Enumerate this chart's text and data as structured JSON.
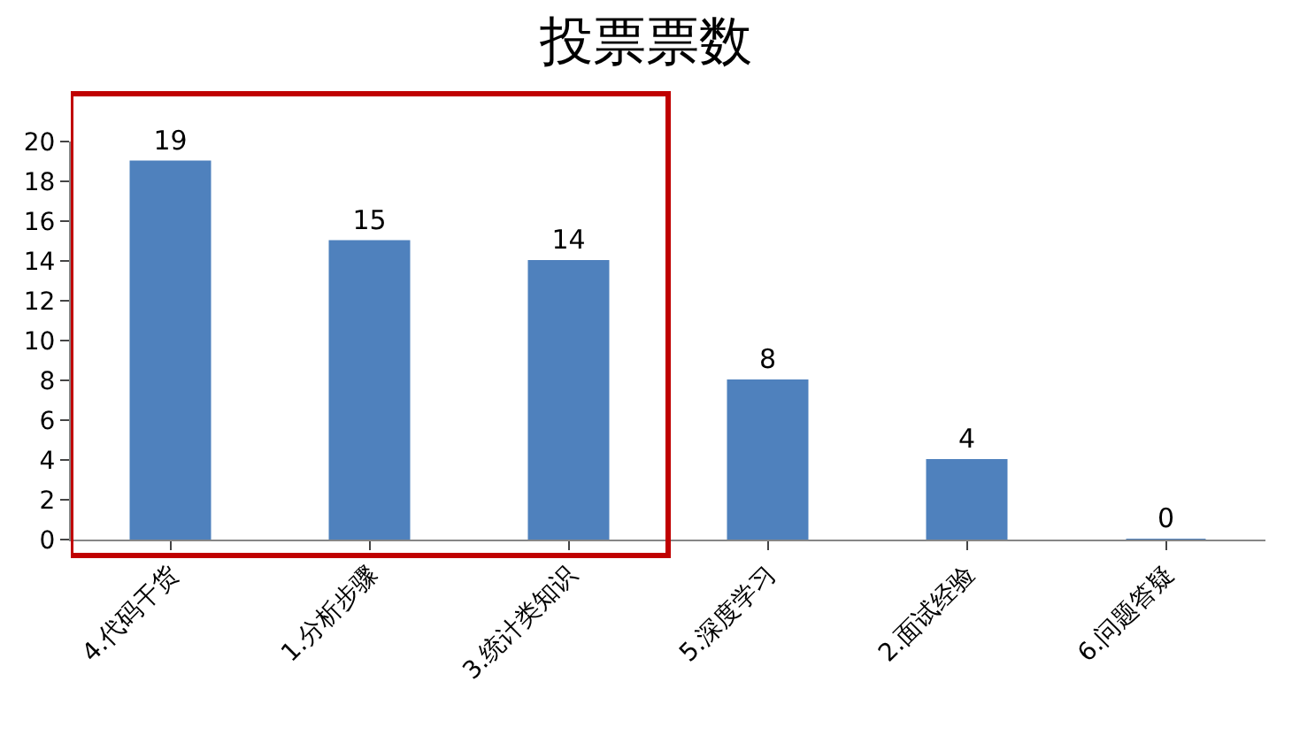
{
  "chart_data": {
    "type": "bar",
    "title": "投票票数",
    "categories": [
      "4.代码干货",
      "1.分析步骤",
      "3.统计类知识",
      "5.深度学习",
      "2.面试经验",
      "6.问题答疑"
    ],
    "values": [
      19,
      15,
      14,
      8,
      4,
      0
    ],
    "color": "#4f81bd",
    "ylim": [
      0,
      20
    ],
    "yticks": [
      0,
      2,
      4,
      6,
      8,
      10,
      12,
      14,
      16,
      18,
      20
    ],
    "data_labels": true,
    "legend": false
  }
}
